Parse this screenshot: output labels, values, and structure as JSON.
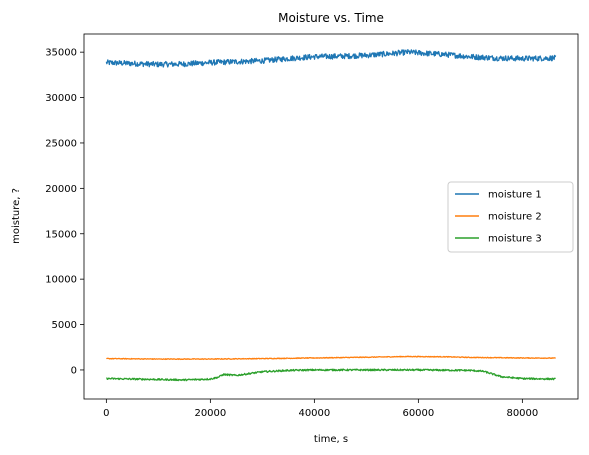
{
  "chart_data": {
    "type": "line",
    "title": "Moisture vs. Time",
    "xlabel": "time, s",
    "ylabel": "moisture, ?",
    "xlim": [
      -4300,
      90700
    ],
    "ylim": [
      -3200,
      37000
    ],
    "xticks": [
      0,
      20000,
      40000,
      60000,
      80000
    ],
    "yticks": [
      0,
      5000,
      10000,
      15000,
      20000,
      25000,
      30000,
      35000
    ],
    "grid": false,
    "legend_position": "center-right",
    "series": [
      {
        "name": "moisture 1",
        "color": "#1f77b4",
        "noise": 300,
        "x": [
          0,
          5000,
          10000,
          15000,
          20000,
          25000,
          30000,
          35000,
          40000,
          45000,
          50000,
          55000,
          58000,
          62000,
          65000,
          70000,
          75000,
          80000,
          86400
        ],
        "values": [
          33850,
          33750,
          33650,
          33700,
          33850,
          33950,
          34050,
          34300,
          34500,
          34550,
          34650,
          34850,
          35000,
          34850,
          34750,
          34500,
          34350,
          34300,
          34350
        ]
      },
      {
        "name": "moisture 2",
        "color": "#ff7f0e",
        "noise": 40,
        "x": [
          0,
          10000,
          20000,
          30000,
          40000,
          50000,
          58000,
          65000,
          70000,
          80000,
          86400
        ],
        "values": [
          1250,
          1200,
          1200,
          1250,
          1320,
          1400,
          1480,
          1450,
          1380,
          1320,
          1300
        ]
      },
      {
        "name": "moisture 3",
        "color": "#2ca02c",
        "noise": 90,
        "x": [
          0,
          5000,
          10000,
          15000,
          20000,
          21500,
          22500,
          25000,
          30000,
          35000,
          40000,
          50000,
          60000,
          70000,
          72500,
          76000,
          80000,
          86400
        ],
        "values": [
          -950,
          -1000,
          -1050,
          -1100,
          -1000,
          -800,
          -500,
          -600,
          -200,
          -50,
          0,
          0,
          0,
          -50,
          -150,
          -750,
          -950,
          -1000
        ]
      }
    ]
  }
}
